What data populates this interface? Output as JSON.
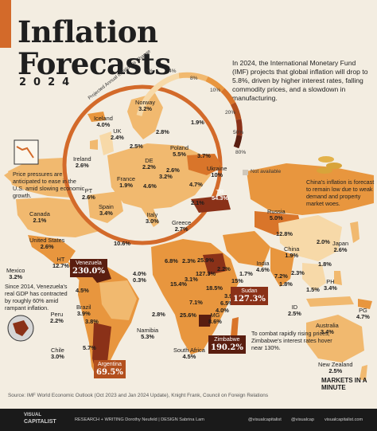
{
  "title_line1": "Inflation",
  "title_line2": "Forecasts",
  "year": "2024",
  "intro": "In 2024, the International Monetary Fund (IMF) projects that global inflation will drop to 5.8%, driven by higher interest rates, falling commodity prices, and a slowdown in manufacturing.",
  "legend": {
    "title": "Projected Annual Inflation % Change",
    "ticks": [
      "0%",
      "4%",
      "8%",
      "10%",
      "20%",
      "50%",
      "80%"
    ],
    "colors": [
      "#f7d9a8",
      "#f1b96f",
      "#e8963e",
      "#d9752a",
      "#b3501e",
      "#8a3118",
      "#5a1e10"
    ],
    "not_available": "Not available"
  },
  "notes": {
    "us": "Price pressures are anticipated to ease in the U.S. amid slowing economic growth.",
    "china": "China's inflation is forecast to remain low due to weak demand and property market woes.",
    "venezuela": "Since 2014, Venezuela's real GDP has contracted by roughly 60% amid rampant inflation.",
    "zimbabwe": "To combat rapidly rising prices, Zimbabwe's interest rates hover near 130%."
  },
  "countries": {
    "norway": {
      "name": "Norway",
      "value": "3.2%"
    },
    "iceland": {
      "name": "Iceland",
      "value": "4.0%"
    },
    "uk": {
      "name": "UK",
      "value": "2.4%"
    },
    "ireland": {
      "name": "Ireland",
      "value": "2.6%"
    },
    "france": {
      "name": "France",
      "value": "1.9%"
    },
    "de": {
      "name": "DE",
      "value": "2.2%"
    },
    "poland": {
      "name": "Poland",
      "value": "5.5%"
    },
    "ukraine": {
      "name": "Ukraine",
      "value": "10%"
    },
    "pt": {
      "name": "PT",
      "value": "2.6%"
    },
    "spain": {
      "name": "Spain",
      "value": "3.4%"
    },
    "italy": {
      "name": "Italy",
      "value": "3.0%"
    },
    "greece": {
      "name": "Greece",
      "value": "2.7%"
    },
    "tr": {
      "name": "TR",
      "value": "54.3%"
    },
    "canada": {
      "name": "Canada",
      "value": "2.1%"
    },
    "usa": {
      "name": "United States",
      "value": "2.6%"
    },
    "mexico": {
      "name": "Mexico",
      "value": "3.2%"
    },
    "ht": {
      "name": "HT",
      "value": "12.7%"
    },
    "venezuela": {
      "name": "Venezuela",
      "value": "230.0%"
    },
    "peru": {
      "name": "Peru",
      "value": "2.2%"
    },
    "brazil": {
      "name": "Brazil",
      "value": "3.9%"
    },
    "chile": {
      "name": "Chile",
      "value": "3.0%"
    },
    "argentina": {
      "name": "Argentina",
      "value": "69.5%"
    },
    "russia": {
      "name": "Russia",
      "value": "5.0%"
    },
    "china": {
      "name": "China",
      "value": "1.9%"
    },
    "japan": {
      "name": "Japan",
      "value": "2.6%"
    },
    "india": {
      "name": "India",
      "value": "4.6%"
    },
    "sudan": {
      "name": "Sudan",
      "value": "127.3%"
    },
    "zimbabwe": {
      "name": "Zimbabwe",
      "value": "190.2%"
    },
    "namibia": {
      "name": "Namibia",
      "value": "5.3%"
    },
    "south_africa": {
      "name": "South Africa",
      "value": "4.5%"
    },
    "mg": {
      "name": "MG",
      "value": "8.6%"
    },
    "ph": {
      "name": "PH",
      "value": "3.4%"
    },
    "id": {
      "name": "ID",
      "value": "2.5%"
    },
    "pg": {
      "name": "PG",
      "value": "4.7%"
    },
    "australia": {
      "name": "Australia",
      "value": "3.4%"
    },
    "new_zealand": {
      "name": "New Zealand",
      "value": "2.5%"
    }
  },
  "europe_extra": [
    "2.8%",
    "1.9%",
    "2.5%",
    "3.7%",
    "2.6%",
    "3.2%",
    "4.7%",
    "2.1%",
    "4.6%"
  ],
  "map_extra": [
    "12.8%",
    "2.0%",
    "1.8%",
    "1.5%",
    "7.2%",
    "1.8%",
    "2.3%",
    "1.7%",
    "15%",
    "2.2%",
    "3.9%",
    "6.5%",
    "4.0%",
    "4.0%",
    "0.3%",
    "6.8%",
    "2.3%",
    "25.9%",
    "127.3%",
    "3.1%",
    "15.4%",
    "18.5%",
    "7.1%",
    "25.6%",
    "2.8%",
    "10.6%",
    "5.7%",
    "4.5%",
    "3.8%"
  ],
  "source": "Source: IMF World Economic Outlook (Oct 2023 and Jan 2024 Update), Knight Frank, Council on Foreign Relations",
  "brand": {
    "line1": "VISUAL",
    "line2": "CAPITALIST"
  },
  "credits": "RESEARCH + WRITING Dorothy Neufeld  |  DESIGN Sabrina Lam",
  "social": [
    "@visualcapitalist",
    "@visualcap",
    "visualcapitalist.com"
  ],
  "series_badge": "MARKETS IN A MINUTE"
}
